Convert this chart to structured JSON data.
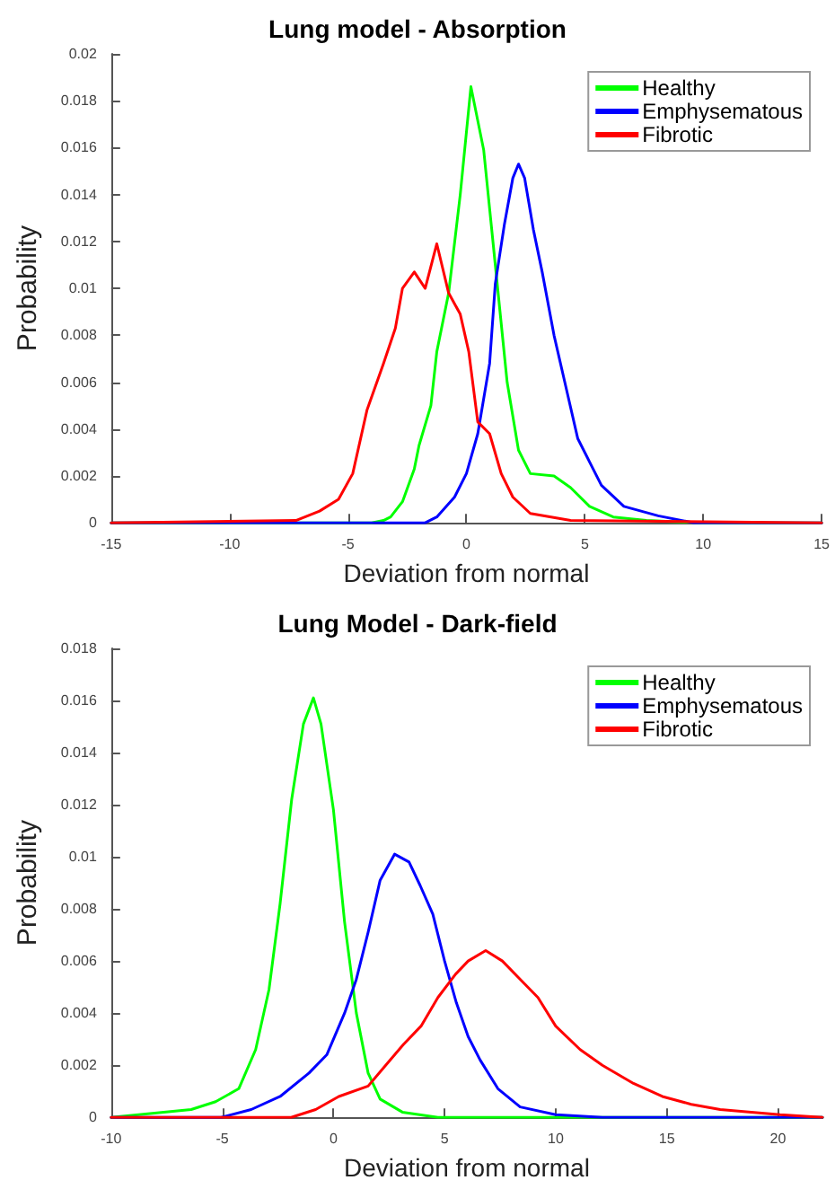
{
  "chart_data": [
    {
      "type": "line",
      "title": "Lung model - Absorption",
      "xlabel": "Deviation from normal",
      "ylabel": "Probability",
      "xlim": [
        -15,
        15
      ],
      "xticks": [
        -15,
        -10,
        -5,
        0,
        5,
        10,
        15
      ],
      "ylim": [
        0,
        0.02
      ],
      "yticks": [
        0,
        0.002,
        0.004,
        0.006,
        0.008,
        0.01,
        0.012,
        0.014,
        0.016,
        0.018,
        0.02
      ],
      "grid": false,
      "legend": "top right",
      "marker": "none",
      "line_style": "solid",
      "series": [
        {
          "name": "Healthy",
          "color": "#00ff00",
          "x": [
            -15,
            -4,
            -3.5,
            -3.2,
            -2.7,
            -2.2,
            -2,
            -1.5,
            -1.25,
            -0.75,
            -0.26,
            0.19,
            0.73,
            1.22,
            1.72,
            2.2,
            2.7,
            3.7,
            4.4,
            5.2,
            6.2,
            7.6,
            10,
            15
          ],
          "values": [
            0,
            0,
            0.0001,
            0.00025,
            0.0009,
            0.0023,
            0.0033,
            0.005,
            0.0073,
            0.0098,
            0.014,
            0.0186,
            0.0159,
            0.011,
            0.006,
            0.0031,
            0.0021,
            0.002,
            0.0015,
            0.0007,
            0.00025,
            0.0001,
            0,
            0
          ]
        },
        {
          "name": "Emphysematous",
          "color": "#0000ff",
          "x": [
            -15,
            -1.74,
            -1.25,
            -0.5,
            0,
            0.48,
            0.98,
            1.22,
            1.6,
            1.96,
            2.2,
            2.46,
            2.83,
            3.2,
            3.7,
            4.2,
            4.7,
            5.2,
            5.7,
            6.65,
            8.1,
            9.6,
            10,
            15
          ],
          "values": [
            0,
            0,
            0.00025,
            0.0011,
            0.0021,
            0.0038,
            0.0068,
            0.0102,
            0.0127,
            0.0147,
            0.0153,
            0.0147,
            0.0125,
            0.0107,
            0.008,
            0.0058,
            0.0036,
            0.0026,
            0.0016,
            0.0007,
            0.0003,
            0,
            0,
            0
          ]
        },
        {
          "name": "Fibrotic",
          "color": "#ff0000",
          "x": [
            -15,
            -7.2,
            -6.2,
            -5.4,
            -4.8,
            -4.2,
            -3.5,
            -3,
            -2.7,
            -2.2,
            -1.74,
            -1.25,
            -0.75,
            -0.26,
            0.1,
            0.48,
            0.98,
            1.47,
            1.96,
            2.7,
            4.4,
            15
          ],
          "values": [
            0,
            0.0001,
            0.0005,
            0.001,
            0.0021,
            0.0048,
            0.0068,
            0.0083,
            0.01,
            0.0107,
            0.01,
            0.0119,
            0.0098,
            0.0089,
            0.0073,
            0.0043,
            0.0038,
            0.0021,
            0.0011,
            0.0004,
            0.0001,
            0
          ]
        }
      ]
    },
    {
      "type": "line",
      "title": "Lung Model - Dark-field",
      "xlabel": "Deviation from normal",
      "ylabel": "Probability",
      "xlim": [
        -10,
        22
      ],
      "xticks": [
        -10,
        -5,
        0,
        5,
        10,
        15,
        20
      ],
      "ylim": [
        0,
        0.018
      ],
      "yticks": [
        0,
        0.002,
        0.004,
        0.006,
        0.008,
        0.01,
        0.012,
        0.014,
        0.016,
        0.018
      ],
      "grid": false,
      "legend": "top right",
      "marker": "none",
      "line_style": "solid",
      "series": [
        {
          "name": "Healthy",
          "color": "#00ff00",
          "x": [
            -10,
            -6.4,
            -5.3,
            -4.26,
            -3.5,
            -2.9,
            -2.4,
            -1.88,
            -1.35,
            -0.9,
            -0.56,
            0,
            0.5,
            1.03,
            1.56,
            2.1,
            3.1,
            4.7,
            22
          ],
          "values": [
            0,
            0.0003,
            0.0006,
            0.0011,
            0.0026,
            0.0049,
            0.0082,
            0.0122,
            0.0151,
            0.0161,
            0.0151,
            0.0118,
            0.0075,
            0.004,
            0.0017,
            0.0007,
            0.0002,
            0,
            0
          ]
        },
        {
          "name": "Emphysematous",
          "color": "#0000ff",
          "x": [
            -10,
            -5.05,
            -3.7,
            -2.4,
            -1.1,
            -0.3,
            0.5,
            1.03,
            1.56,
            2.1,
            2.75,
            3.4,
            3.9,
            4.47,
            5,
            5.53,
            6.06,
            6.6,
            7.4,
            8.4,
            10,
            12.1,
            22
          ],
          "values": [
            0,
            0,
            0.0003,
            0.0008,
            0.0017,
            0.0024,
            0.004,
            0.0053,
            0.0071,
            0.0091,
            0.0101,
            0.0098,
            0.0089,
            0.0078,
            0.006,
            0.0044,
            0.0031,
            0.0022,
            0.0011,
            0.0004,
            0.0001,
            0,
            0
          ]
        },
        {
          "name": "Fibrotic",
          "color": "#ff0000",
          "x": [
            -10,
            -1.9,
            -0.8,
            0.24,
            1.56,
            2.35,
            3.15,
            3.94,
            4.7,
            5.5,
            6.06,
            6.85,
            7.6,
            8.4,
            9.2,
            10,
            11.1,
            12.1,
            13.5,
            14.8,
            16.1,
            17.4,
            18.8,
            20.1,
            22
          ],
          "values": [
            0,
            0,
            0.0003,
            0.0008,
            0.0012,
            0.002,
            0.0028,
            0.0035,
            0.0046,
            0.0055,
            0.006,
            0.0064,
            0.006,
            0.0053,
            0.0046,
            0.0035,
            0.0026,
            0.002,
            0.0013,
            0.0008,
            0.0005,
            0.0003,
            0.0002,
            0.0001,
            0
          ]
        }
      ]
    }
  ]
}
